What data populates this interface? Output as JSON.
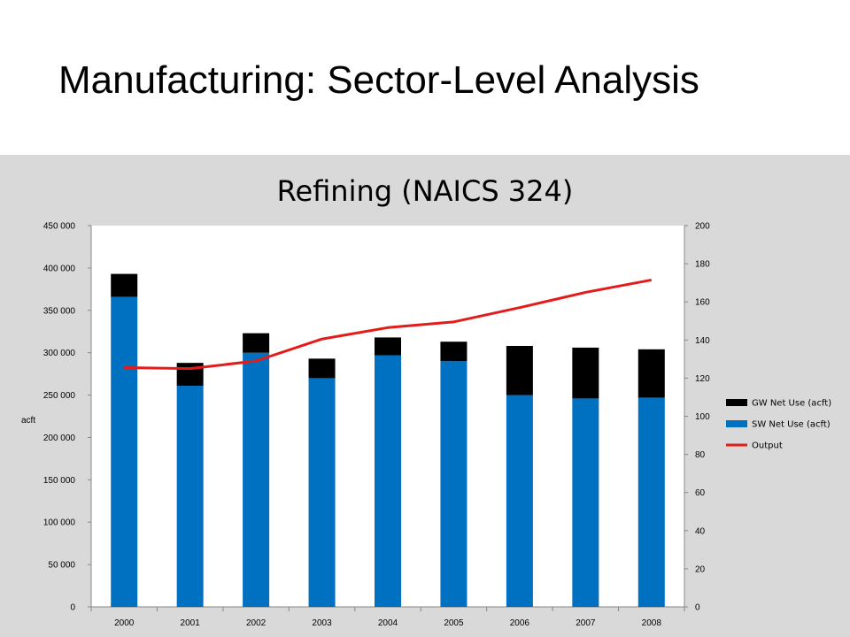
{
  "slide": {
    "title": "Manufacturing: Sector-Level Analysis"
  },
  "chart_data": {
    "type": "bar",
    "stacked": true,
    "title": "Refining (NAICS 324)",
    "xlabel": "",
    "ylabel": "acft",
    "y2label": "",
    "categories": [
      "2000",
      "2001",
      "2002",
      "2003",
      "2004",
      "2005",
      "2006",
      "2007",
      "2008"
    ],
    "ylim": [
      0,
      450000
    ],
    "yticks": [
      0,
      50000,
      100000,
      150000,
      200000,
      250000,
      300000,
      350000,
      400000,
      450000
    ],
    "yticklabels": [
      "0",
      "50 000",
      "100 000",
      "150 000",
      "200 000",
      "250 000",
      "300 000",
      "350 000",
      "400 000",
      "450 000"
    ],
    "y2lim": [
      0,
      200
    ],
    "y2ticks": [
      0,
      20,
      40,
      60,
      80,
      100,
      120,
      140,
      160,
      180,
      200
    ],
    "y2ticklabels": [
      "0",
      "20",
      "40",
      "60",
      "80",
      "100",
      "120",
      "140",
      "160",
      "180",
      "200"
    ],
    "grid": false,
    "legend_position": "right",
    "series": [
      {
        "name": "SW Net Use (acft)",
        "kind": "bar",
        "axis": "left",
        "color": "#0070c0",
        "values": [
          366000,
          261000,
          300000,
          270000,
          297000,
          290000,
          250000,
          246000,
          247000
        ]
      },
      {
        "name": "GW Net Use (acft)",
        "kind": "bar",
        "axis": "left",
        "color": "#000000",
        "values": [
          27000,
          27000,
          23000,
          23000,
          21000,
          23000,
          58000,
          60000,
          57000
        ]
      },
      {
        "name": "Output",
        "kind": "line",
        "axis": "right",
        "color": "#e31b1b",
        "values": [
          125.5,
          125,
          129,
          140.5,
          146.5,
          149.5,
          157,
          165,
          171.5
        ]
      }
    ],
    "legend_order": [
      "GW Net Use (acft)",
      "SW Net Use (acft)",
      "Output"
    ]
  }
}
